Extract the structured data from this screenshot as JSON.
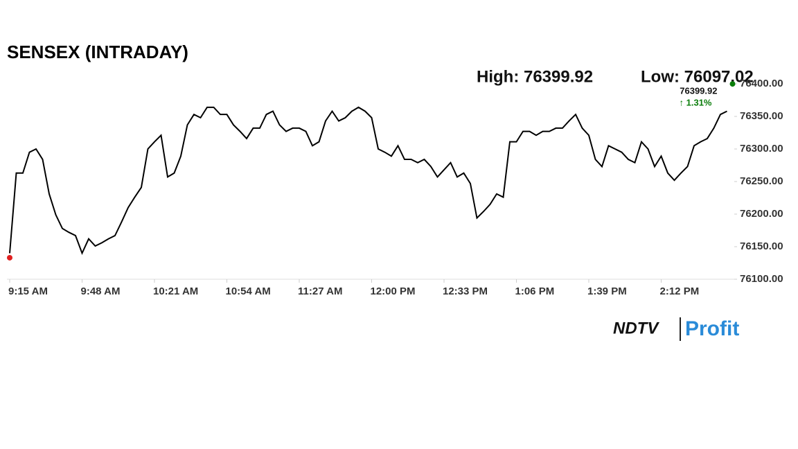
{
  "chart_data": {
    "type": "line",
    "title": "SENSEX (INTRADAY)",
    "annotations": [
      "High: 76399.92",
      "Low: 76097.02"
    ],
    "categories": [
      "9:15 AM",
      null,
      null,
      null,
      null,
      null,
      null,
      null,
      null,
      null,
      null,
      "9:48 AM",
      null,
      null,
      null,
      null,
      null,
      null,
      null,
      null,
      null,
      null,
      "10:21 AM",
      null,
      null,
      null,
      null,
      null,
      null,
      null,
      null,
      null,
      null,
      "10:54 AM",
      null,
      null,
      null,
      null,
      null,
      null,
      null,
      null,
      null,
      null,
      "11:27 AM",
      null,
      null,
      null,
      null,
      null,
      null,
      null,
      null,
      null,
      null,
      "12:00 PM",
      null,
      null,
      null,
      null,
      null,
      null,
      null,
      null,
      null,
      null,
      "12:33 PM",
      null,
      null,
      null,
      null,
      null,
      null,
      null,
      null,
      null,
      null,
      "1:06 PM",
      null,
      null,
      null,
      null,
      null,
      null,
      null,
      null,
      null,
      null,
      "1:39 PM",
      null,
      null,
      null,
      null,
      null,
      null,
      null,
      null,
      null,
      null,
      "2:12 PM",
      null,
      null,
      null,
      null,
      null,
      null,
      null,
      null,
      null,
      null
    ],
    "series": [
      {
        "name": "SENSEX",
        "color": "#000000",
        "values": [
          76140,
          76263,
          76263,
          76295,
          76300,
          76284,
          76231,
          76199,
          76178,
          76172,
          76167,
          76140,
          76162,
          76151,
          76156,
          76162,
          76167,
          76188,
          76210,
          76226,
          76241,
          76300,
          76311,
          76321,
          76257,
          76263,
          76289,
          76337,
          76353,
          76348,
          76364,
          76364,
          76353,
          76353,
          76337,
          76327,
          76316,
          76332,
          76332,
          76353,
          76358,
          76337,
          76327,
          76332,
          76332,
          76327,
          76305,
          76311,
          76343,
          76358,
          76343,
          76348,
          76358,
          76364,
          76358,
          76348,
          76300,
          76295,
          76289,
          76305,
          76284,
          76284,
          76279,
          76284,
          76273,
          76257,
          76268,
          76279,
          76257,
          76263,
          76247,
          76194,
          76204,
          76215,
          76231,
          76226,
          76311,
          76311,
          76327,
          76327,
          76321,
          76327,
          76327,
          76332,
          76332,
          76343,
          76353,
          76332,
          76321,
          76284,
          76273,
          76305,
          76300,
          76295,
          76284,
          76279,
          76311,
          76300,
          76273,
          76289,
          76263,
          76252,
          76263,
          76273,
          76305,
          76311,
          76316,
          76332,
          76353,
          76358
        ]
      }
    ],
    "high_point": {
      "value": 76399.92,
      "label": "76399.92",
      "change": "↑ 1.31%",
      "color": "#0a7d0a"
    },
    "low_point": {
      "value": 76133,
      "color": "#e02020"
    },
    "ylim": [
      76100,
      76400
    ],
    "yticks": [
      {
        "value": 76100,
        "label": "76100.00"
      },
      {
        "value": 76150,
        "label": "76150.00"
      },
      {
        "value": 76200,
        "label": "76200.00"
      },
      {
        "value": 76250,
        "label": "76250.00"
      },
      {
        "value": 76300,
        "label": "76300.00"
      },
      {
        "value": 76350,
        "label": "76350.00"
      },
      {
        "value": 76400,
        "label": "76400.00"
      }
    ],
    "logo": [
      "NDTV",
      "Profit"
    ]
  }
}
